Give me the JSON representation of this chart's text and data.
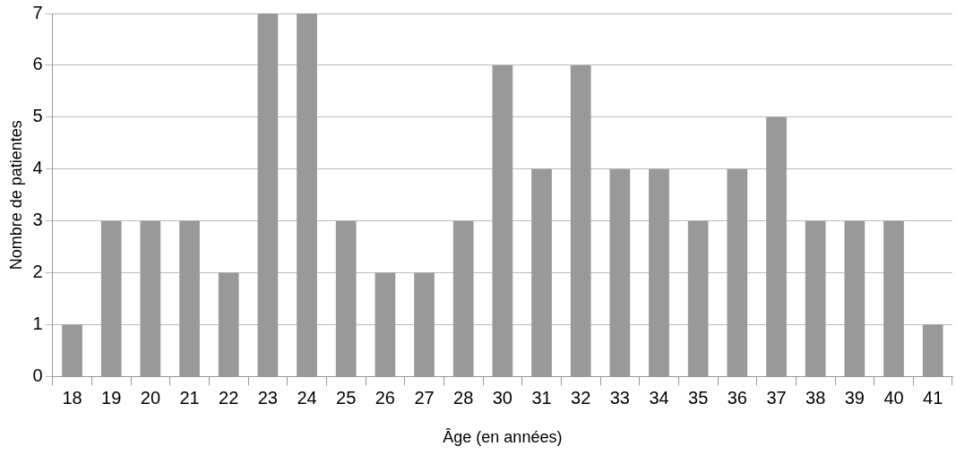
{
  "chart_data": {
    "type": "bar",
    "xlabel": "Âge (en années)",
    "ylabel": "Nombre de patientes",
    "categories": [
      "18",
      "19",
      "20",
      "21",
      "22",
      "23",
      "24",
      "25",
      "26",
      "27",
      "28",
      "30",
      "31",
      "32",
      "33",
      "34",
      "35",
      "36",
      "37",
      "38",
      "39",
      "40",
      "41"
    ],
    "values": [
      1,
      3,
      3,
      3,
      2,
      7,
      7,
      3,
      2,
      2,
      3,
      6,
      4,
      6,
      4,
      4,
      3,
      4,
      5,
      3,
      3,
      3,
      1
    ],
    "color": "#999999",
    "ylim": [
      0,
      7
    ],
    "yticks": [
      0,
      1,
      2,
      3,
      4,
      5,
      6,
      7
    ],
    "grid": "y",
    "legend": false
  }
}
